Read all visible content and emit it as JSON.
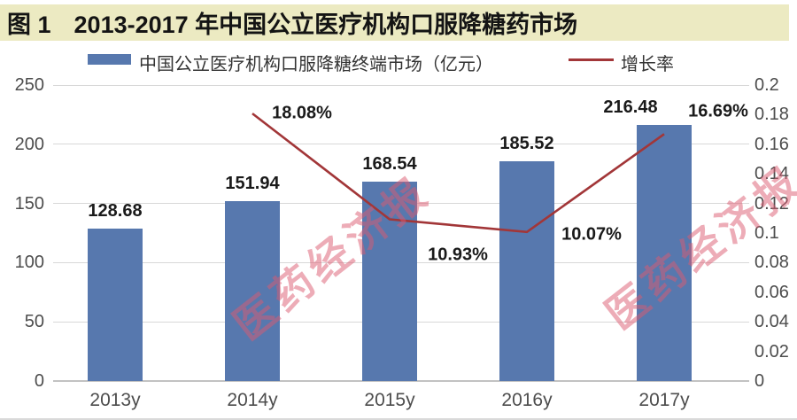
{
  "figure": {
    "label": "图 1",
    "title": "2013-2017 年中国公立医疗机构口服降糖药市场"
  },
  "legend": {
    "bar_label": "中国公立医疗机构口服降糖终端市场（亿元）",
    "line_label": "增长率"
  },
  "watermark": {
    "text": "医药经济报"
  },
  "colors": {
    "bar": "#5778ae",
    "line": "#a23638",
    "title_bg": "#eceac2",
    "grid": "#d8d8d8",
    "watermark": "rgba(219,90,112,0.5)"
  },
  "chart_data": {
    "type": "bar",
    "subtype": "bar+line dual-axis",
    "categories": [
      "2013y",
      "2014y",
      "2015y",
      "2016y",
      "2017y"
    ],
    "series": [
      {
        "name": "中国公立医疗机构口服降糖终端市场（亿元）",
        "type": "bar",
        "axis": "left",
        "values": [
          128.68,
          151.94,
          168.54,
          185.52,
          216.48
        ],
        "labels": [
          "128.68",
          "151.94",
          "168.54",
          "185.52",
          "216.48"
        ]
      },
      {
        "name": "增长率",
        "type": "line",
        "axis": "right",
        "values": [
          null,
          0.1808,
          0.1093,
          0.1007,
          0.1669
        ],
        "labels": [
          null,
          "18.08%",
          "10.93%",
          "10.07%",
          "16.69%"
        ]
      }
    ],
    "left_axis": {
      "min": 0,
      "max": 250,
      "ticks": [
        "250",
        "200",
        "150",
        "100",
        "50",
        "0"
      ]
    },
    "right_axis": {
      "min": 0,
      "max": 0.2,
      "ticks": [
        "0.2",
        "0.18",
        "0.16",
        "0.14",
        "0.12",
        "0.1",
        "0.08",
        "0.06",
        "0.04",
        "0.02",
        "0"
      ]
    },
    "grid": "horizontal only",
    "legend_position": "top"
  }
}
